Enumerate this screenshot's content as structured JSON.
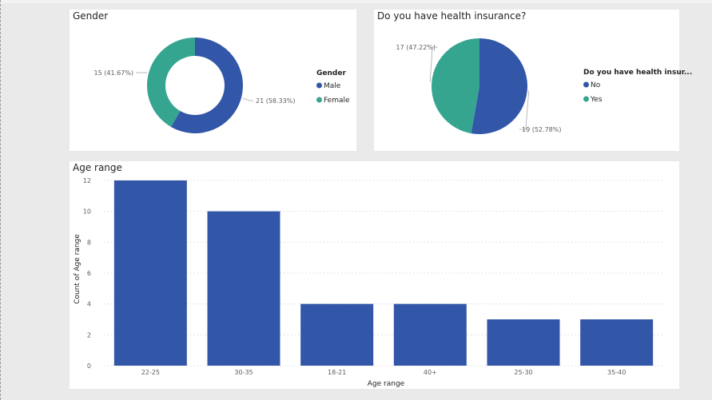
{
  "colors": {
    "primary": "#3256a8",
    "secondary": "#36a58f"
  },
  "chart_data": [
    {
      "type": "pie",
      "title": "Gender",
      "legend_title": "Gender",
      "legend_position": "right",
      "donut": true,
      "slices": [
        {
          "name": "Male",
          "value": 21,
          "label": "21 (58.33%)",
          "color": "#3256a8"
        },
        {
          "name": "Female",
          "value": 15,
          "label": "15 (41.67%)",
          "color": "#36a58f"
        }
      ]
    },
    {
      "type": "pie",
      "title": "Do you have health insurance?",
      "legend_title": "Do you have health insur...",
      "legend_position": "right",
      "donut": false,
      "slices": [
        {
          "name": "No",
          "value": 19,
          "label": "19 (52.78%)",
          "color": "#3256a8"
        },
        {
          "name": "Yes",
          "value": 17,
          "label": "17 (47.22%)",
          "color": "#36a58f"
        }
      ]
    },
    {
      "type": "bar",
      "title": "Age range",
      "categories": [
        "22-25",
        "30-35",
        "18-21",
        "40+",
        "25-30",
        "35-40"
      ],
      "values": [
        12,
        10,
        4,
        4,
        3,
        3
      ],
      "xlabel": "Age range",
      "ylabel": "Count of Age range",
      "ylim": [
        0,
        12
      ],
      "yticks": [
        "0",
        "2",
        "4",
        "6",
        "8",
        "10",
        "12"
      ],
      "grid": true,
      "color": "#3256a8"
    }
  ]
}
